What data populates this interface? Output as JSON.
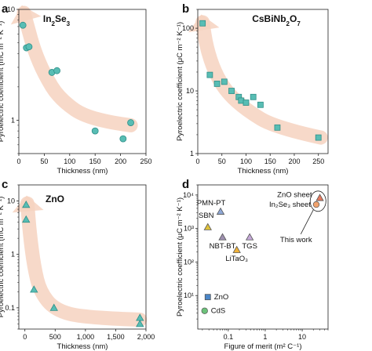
{
  "colors": {
    "arrow": "#f6d2bf",
    "teal": "#58bdb4",
    "teal_stroke": "#2f8f88",
    "pmn_pt": "#8fa8d6",
    "sbn": "#e0c23a",
    "nbt_bt": "#9e8fb0",
    "litao3": "#f0b23a",
    "tgs": "#c5a8d8",
    "zno": "#4a86c8",
    "cds": "#6cc27a",
    "zno_sheet": "#e57a5e",
    "in2se3_sheet": "#f2a36e"
  },
  "chart_data": [
    {
      "panel": "a",
      "type": "scatter",
      "title_parts": [
        "In",
        "2",
        "Se",
        "3"
      ],
      "xlabel": "Thickness (nm)",
      "ylabel": "Pyroelectric coefficient (mC m⁻² K⁻¹)",
      "xlim": [
        0,
        250
      ],
      "xticks": [
        0,
        50,
        100,
        150,
        200,
        250
      ],
      "xtick_labels": [
        "0",
        "50",
        "100",
        "150",
        "200",
        "250"
      ],
      "ylog": true,
      "ylim": [
        0.5,
        10
      ],
      "yticks": [
        1,
        10
      ],
      "ytick_labels": [
        "1",
        "10"
      ],
      "marker": "circle",
      "arrow": [
        [
          220,
          0.9
        ],
        [
          140,
          1.0
        ],
        [
          80,
          1.55
        ],
        [
          50,
          2.6
        ],
        [
          30,
          4.3
        ],
        [
          18,
          6.8
        ],
        [
          10,
          9.3
        ]
      ],
      "points": [
        {
          "x": 8,
          "y": 7.2
        },
        {
          "x": 15,
          "y": 4.5
        },
        {
          "x": 20,
          "y": 4.6
        },
        {
          "x": 65,
          "y": 2.7
        },
        {
          "x": 75,
          "y": 2.8
        },
        {
          "x": 150,
          "y": 0.8
        },
        {
          "x": 205,
          "y": 0.68
        },
        {
          "x": 220,
          "y": 0.95
        }
      ]
    },
    {
      "panel": "b",
      "type": "scatter",
      "title_parts": [
        "CsBiNb",
        "2",
        "O",
        "7"
      ],
      "xlabel": "Thickness (nm)",
      "ylabel": "Pyroelectric coefficient (μC m⁻² K⁻¹)",
      "xlim": [
        0,
        270
      ],
      "xticks": [
        0,
        50,
        100,
        150,
        200,
        250
      ],
      "xtick_labels": [
        "0",
        "50",
        "100",
        "150",
        "200",
        "250"
      ],
      "ylog": true,
      "ylim": [
        1,
        200
      ],
      "yticks": [
        1,
        10,
        100
      ],
      "ytick_labels": [
        "1",
        "10",
        "100"
      ],
      "marker": "square",
      "arrow": [
        [
          255,
          1.8
        ],
        [
          160,
          2.6
        ],
        [
          100,
          5.0
        ],
        [
          60,
          9.5
        ],
        [
          35,
          20
        ],
        [
          18,
          50
        ],
        [
          10,
          125
        ]
      ],
      "points": [
        {
          "x": 10,
          "y": 120
        },
        {
          "x": 25,
          "y": 18
        },
        {
          "x": 40,
          "y": 13
        },
        {
          "x": 55,
          "y": 14
        },
        {
          "x": 70,
          "y": 10
        },
        {
          "x": 85,
          "y": 8
        },
        {
          "x": 90,
          "y": 7
        },
        {
          "x": 100,
          "y": 6.5
        },
        {
          "x": 115,
          "y": 8
        },
        {
          "x": 130,
          "y": 6
        },
        {
          "x": 165,
          "y": 2.6
        },
        {
          "x": 250,
          "y": 1.8
        }
      ]
    },
    {
      "panel": "c",
      "type": "scatter",
      "title_parts": [
        "ZnO"
      ],
      "xlabel": "Thickness (nm)",
      "ylabel": "Pyroelectric coefficient (mC m⁻² K⁻¹)",
      "xlim": [
        -100,
        2000
      ],
      "xticks": [
        0,
        500,
        1000,
        1500,
        2000
      ],
      "xtick_labels": [
        "0",
        "500",
        "1,000",
        "1,500",
        "2,000"
      ],
      "ylog": true,
      "ylim": [
        0.04,
        20
      ],
      "yticks": [
        0.1,
        1,
        10
      ],
      "ytick_labels": [
        "0.1",
        "1",
        "10"
      ],
      "marker": "triangle",
      "arrow": [
        [
          1900,
          0.06
        ],
        [
          1000,
          0.065
        ],
        [
          500,
          0.09
        ],
        [
          250,
          0.2
        ],
        [
          150,
          0.6
        ],
        [
          80,
          2.5
        ],
        [
          40,
          9
        ]
      ],
      "points": [
        {
          "x": 20,
          "y": 8.5
        },
        {
          "x": 20,
          "y": 4.5
        },
        {
          "x": 150,
          "y": 0.22
        },
        {
          "x": 480,
          "y": 0.1
        },
        {
          "x": 1900,
          "y": 0.065
        },
        {
          "x": 1900,
          "y": 0.05
        }
      ]
    },
    {
      "panel": "d",
      "type": "scatter",
      "xlabel": "Figure of merit (m² C⁻¹)",
      "ylabel": "Pyroelectric coefficient (μC m⁻² K⁻¹)",
      "xlog": true,
      "xlim": [
        0.015,
        50
      ],
      "xticks": [
        0.1,
        1,
        10
      ],
      "xtick_labels": [
        "0.1",
        "1",
        "10"
      ],
      "ylog": true,
      "ylim": [
        1,
        20000
      ],
      "yticks": [
        10,
        100,
        1000,
        10000
      ],
      "ytick_labels": [
        "10¹",
        "10²",
        "10³",
        "10⁴"
      ],
      "points": [
        {
          "name": "PMN-PT",
          "x": 0.062,
          "y": 3200,
          "color_key": "pmn_pt",
          "label_dx": -12,
          "label_dy": -8,
          "anchor": "middle"
        },
        {
          "name": "SBN",
          "x": 0.028,
          "y": 1100,
          "color_key": "sbn",
          "label_dx": -2,
          "label_dy": -12,
          "anchor": "middle"
        },
        {
          "name": "NBT-BT",
          "x": 0.07,
          "y": 550,
          "color_key": "nbt_bt",
          "label_dx": 0,
          "label_dy": 14,
          "anchor": "middle"
        },
        {
          "name": "TGS",
          "x": 0.38,
          "y": 550,
          "color_key": "tgs",
          "label_dx": 0,
          "label_dy": 14,
          "anchor": "middle"
        },
        {
          "name": "LiTaO₃",
          "x": 0.17,
          "y": 230,
          "color_key": "litao3",
          "label_dx": 0,
          "label_dy": 14,
          "anchor": "middle"
        },
        {
          "name": "ZnO",
          "x": 0.028,
          "y": 9,
          "color_key": "zno",
          "label_dx": 8,
          "label_dy": 3,
          "anchor": "start"
        },
        {
          "name": "CdS",
          "x": 0.023,
          "y": 3.5,
          "color_key": "cds",
          "label_dx": 8,
          "label_dy": 3,
          "anchor": "start"
        },
        {
          "name": "ZnO sheet",
          "x": 30,
          "y": 8200,
          "color_key": "zno_sheet",
          "label_dx": -10,
          "label_dy": -1,
          "anchor": "end"
        },
        {
          "name": "In₂Se₃ sheet",
          "x": 24,
          "y": 5200,
          "color_key": "in2se3_sheet",
          "label_dx": -7,
          "label_dy": 3,
          "anchor": "end"
        }
      ],
      "annotation": "This work"
    }
  ]
}
